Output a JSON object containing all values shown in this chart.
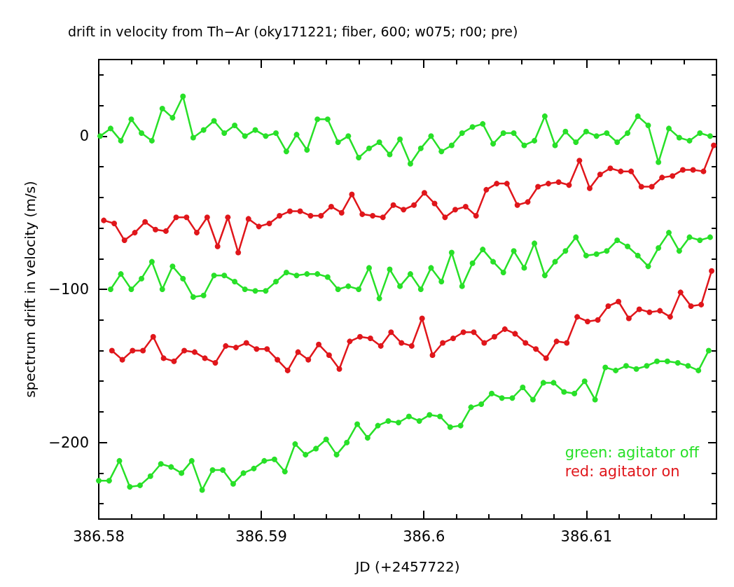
{
  "chart_data": {
    "type": "line",
    "title": "drift in velocity from Th−Ar (oky171221; fiber, 600; w075; r00; pre)",
    "xlabel": "JD (+2457722)",
    "ylabel": "spectrum drift in velocity (m/s)",
    "xlim": [
      386.58,
      386.618
    ],
    "xticks": [
      386.58,
      {
        "value": 386.582,
        "label": null
      },
      {
        "value": 386.584,
        "label": null
      },
      {
        "value": 386.586,
        "label": null
      },
      {
        "value": 386.588,
        "label": null
      },
      386.59,
      {
        "value": 386.592,
        "label": null
      },
      {
        "value": 386.594,
        "label": null
      },
      {
        "value": 386.596,
        "label": null
      },
      {
        "value": 386.598,
        "label": null
      },
      386.6,
      {
        "value": 386.602,
        "label": null
      },
      {
        "value": 386.604,
        "label": null
      },
      {
        "value": 386.606,
        "label": null
      },
      {
        "value": 386.608,
        "label": null
      },
      386.61,
      {
        "value": 386.612,
        "label": null
      },
      {
        "value": 386.614,
        "label": null
      },
      {
        "value": 386.616,
        "label": null
      }
    ],
    "ylim": [
      -250,
      50
    ],
    "yticks": [
      {
        "value": -240,
        "label": null
      },
      {
        "value": -220,
        "label": null
      },
      {
        "value": -200,
        "label": "−200"
      },
      {
        "value": -180,
        "label": null
      },
      {
        "value": -160,
        "label": null
      },
      {
        "value": -140,
        "label": null
      },
      {
        "value": -120,
        "label": null
      },
      {
        "value": -100,
        "label": "−100"
      },
      {
        "value": -80,
        "label": null
      },
      {
        "value": -60,
        "label": null
      },
      {
        "value": -40,
        "label": null
      },
      {
        "value": -20,
        "label": null
      },
      0,
      {
        "value": 20,
        "label": null
      },
      {
        "value": 40,
        "label": null
      }
    ],
    "marker": "circle",
    "line_style": "solid",
    "legend": "bottom right",
    "series": [
      {
        "name": "green: agitator off",
        "color": "#28e028",
        "x": [
          386.58009,
          386.58073,
          386.58136,
          386.582,
          386.58263,
          386.58327,
          386.58391,
          386.58454,
          386.58518,
          386.58581,
          386.58645,
          386.58709,
          386.58772,
          386.58836,
          386.58899,
          386.58963,
          386.59027,
          386.5909,
          386.59154,
          386.59217,
          386.59281,
          386.59345,
          386.59408,
          386.59472,
          386.59535,
          386.59599,
          386.59663,
          386.59726,
          386.5979,
          386.59853,
          386.59917,
          386.59981,
          386.60044,
          386.60108,
          386.60171,
          386.60235,
          386.60299,
          386.60362,
          386.60426,
          386.60489,
          386.60553,
          386.60617,
          386.6068,
          386.60744,
          386.60807,
          386.60871,
          386.60935,
          386.60998,
          386.61062,
          386.61125,
          386.61189,
          386.61253,
          386.61316,
          386.6138,
          386.61443,
          386.61507,
          386.61571,
          386.61634,
          386.61698,
          386.61761
        ],
        "values": [
          0,
          5,
          -3,
          11,
          2,
          -3,
          18,
          12,
          26,
          -1,
          4,
          10,
          2,
          7,
          0,
          4,
          0,
          2,
          -10,
          1,
          -9,
          11,
          11,
          -4,
          0,
          -14,
          -8,
          -4,
          -12,
          -2,
          -18,
          -8,
          0,
          -10,
          -6,
          2,
          6,
          8,
          -5,
          2,
          2,
          -6,
          -3,
          13,
          -6,
          3,
          -4,
          3,
          0,
          2,
          -4,
          2,
          13,
          7,
          -17,
          5,
          -1,
          -3,
          2,
          0
        ]
      },
      {
        "name": "red: agitator on",
        "color": "#e0161b",
        "x": [
          386.58031,
          386.58095,
          386.58158,
          386.58222,
          386.58285,
          386.58349,
          386.58413,
          386.58476,
          386.5854,
          386.58603,
          386.58667,
          386.58731,
          386.58794,
          386.58858,
          386.58921,
          386.58985,
          386.59049,
          386.59112,
          386.59176,
          386.59239,
          386.59303,
          386.59367,
          386.5943,
          386.59494,
          386.59557,
          386.59621,
          386.59685,
          386.59748,
          386.59812,
          386.59875,
          386.59939,
          386.60003,
          386.60066,
          386.6013,
          386.60193,
          386.60257,
          386.60321,
          386.60384,
          386.60448,
          386.60511,
          386.60575,
          386.60639,
          386.60702,
          386.60766,
          386.60829,
          386.60893,
          386.60957,
          386.6102,
          386.61084,
          386.61147,
          386.61211,
          386.61275,
          386.61338,
          386.61402,
          386.61465,
          386.61529,
          386.61593,
          386.61656,
          386.6172,
          386.61783
        ],
        "values": [
          -55,
          -57,
          -68,
          -63,
          -56,
          -61,
          -62,
          -53,
          -53,
          -63,
          -53,
          -72,
          -53,
          -76,
          -54,
          -59,
          -57,
          -52,
          -49,
          -49,
          -52,
          -52,
          -46,
          -50,
          -38,
          -51,
          -52,
          -53,
          -45,
          -48,
          -45,
          -37,
          -44,
          -53,
          -48,
          -46,
          -52,
          -35,
          -31,
          -31,
          -45,
          -43,
          -33,
          -31,
          -30,
          -32,
          -16,
          -34,
          -25,
          -21,
          -23,
          -23,
          -33,
          -33,
          -27,
          -26,
          -22,
          -22,
          -23,
          -6
        ]
      },
      {
        "color": "#28e028",
        "x": [
          386.58073,
          386.58136,
          386.582,
          386.58263,
          386.58327,
          386.58391,
          386.58454,
          386.58518,
          386.58581,
          386.58645,
          386.58709,
          386.58772,
          386.58836,
          386.58899,
          386.58963,
          386.59027,
          386.5909,
          386.59154,
          386.59217,
          386.59281,
          386.59345,
          386.59408,
          386.59472,
          386.59535,
          386.59599,
          386.59663,
          386.59726,
          386.5979,
          386.59853,
          386.59917,
          386.59981,
          386.60044,
          386.60108,
          386.60171,
          386.60235,
          386.60299,
          386.60362,
          386.60426,
          386.60489,
          386.60553,
          386.60617,
          386.6068,
          386.60744,
          386.60807,
          386.60871,
          386.60935,
          386.60998,
          386.61062,
          386.61125,
          386.61189,
          386.61253,
          386.61316,
          386.6138,
          386.61443,
          386.61507,
          386.61571,
          386.61634,
          386.61698,
          386.61761
        ],
        "values": [
          -100,
          -90,
          -100,
          -93,
          -82,
          -100,
          -85,
          -93,
          -105,
          -104,
          -91,
          -91,
          -95,
          -100,
          -101,
          -101,
          -95,
          -89,
          -91,
          -90,
          -90,
          -92,
          -100,
          -98,
          -100,
          -86,
          -106,
          -87,
          -98,
          -90,
          -100,
          -86,
          -95,
          -76,
          -98,
          -83,
          -74,
          -82,
          -89,
          -75,
          -86,
          -70,
          -91,
          -82,
          -75,
          -66,
          -78,
          -77,
          -75,
          -68,
          -72,
          -78,
          -85,
          -73,
          -63,
          -75,
          -66,
          -68,
          -66
        ]
      },
      {
        "color": "#e0161b",
        "x": [
          386.58081,
          386.58145,
          386.58208,
          386.58272,
          386.58335,
          386.58399,
          386.58463,
          386.58526,
          386.5859,
          386.58653,
          386.58717,
          386.58781,
          386.58844,
          386.58908,
          386.58971,
          386.59035,
          386.59099,
          386.59162,
          386.59226,
          386.59289,
          386.59353,
          386.59417,
          386.5948,
          386.59544,
          386.59607,
          386.59671,
          386.59735,
          386.59798,
          386.59862,
          386.59925,
          386.59989,
          386.60053,
          386.60116,
          386.6018,
          386.60243,
          386.60307,
          386.60371,
          386.60434,
          386.60498,
          386.60561,
          386.60625,
          386.60689,
          386.60752,
          386.60816,
          386.60879,
          386.60943,
          386.61007,
          386.6107,
          386.61134,
          386.61197,
          386.61261,
          386.61325,
          386.61388,
          386.61452,
          386.61515,
          386.61579,
          386.61643,
          386.61706,
          386.6177
        ],
        "values": [
          -140,
          -146,
          -140,
          -140,
          -131,
          -145,
          -147,
          -140,
          -141,
          -145,
          -148,
          -137,
          -138,
          -135,
          -139,
          -139,
          -146,
          -153,
          -141,
          -146,
          -136,
          -143,
          -152,
          -134,
          -131,
          -132,
          -137,
          -128,
          -135,
          -137,
          -119,
          -143,
          -135,
          -132,
          -128,
          -128,
          -135,
          -131,
          -126,
          -129,
          -135,
          -139,
          -145,
          -134,
          -135,
          -118,
          -121,
          -120,
          -111,
          -108,
          -119,
          -113,
          -115,
          -114,
          -118,
          -102,
          -111,
          -110,
          -88
        ]
      },
      {
        "color": "#28e028",
        "x": [
          386.58,
          386.58064,
          386.58127,
          386.58191,
          386.58254,
          386.58318,
          386.58382,
          386.58445,
          386.58509,
          386.58572,
          386.58636,
          386.587,
          386.58763,
          386.58827,
          386.5889,
          386.58954,
          386.59018,
          386.59081,
          386.59145,
          386.59208,
          386.59272,
          386.59336,
          386.59399,
          386.59463,
          386.59526,
          386.5959,
          386.59654,
          386.59717,
          386.59781,
          386.59844,
          386.59908,
          386.59972,
          386.60035,
          386.60099,
          386.60162,
          386.60226,
          386.6029,
          386.60353,
          386.60417,
          386.6048,
          386.60544,
          386.60608,
          386.60671,
          386.60735,
          386.60798,
          386.60862,
          386.60926,
          386.60989,
          386.61053,
          386.61116,
          386.6118,
          386.61244,
          386.61307,
          386.61371,
          386.61434,
          386.61498,
          386.61562,
          386.61625,
          386.61689,
          386.61752
        ],
        "values": [
          -225,
          -225,
          -212,
          -229,
          -228,
          -222,
          -214,
          -216,
          -220,
          -212,
          -231,
          -218,
          -218,
          -227,
          -220,
          -217,
          -212,
          -211,
          -219,
          -201,
          -208,
          -204,
          -198,
          -208,
          -200,
          -188,
          -197,
          -189,
          -186,
          -187,
          -183,
          -186,
          -182,
          -183,
          -190,
          -189,
          -177,
          -175,
          -168,
          -171,
          -171,
          -164,
          -172,
          -161,
          -161,
          -167,
          -168,
          -160,
          -172,
          -151,
          -153,
          -150,
          -152,
          -150,
          -147,
          -147,
          -148,
          -150,
          -153,
          -140
        ]
      }
    ]
  }
}
